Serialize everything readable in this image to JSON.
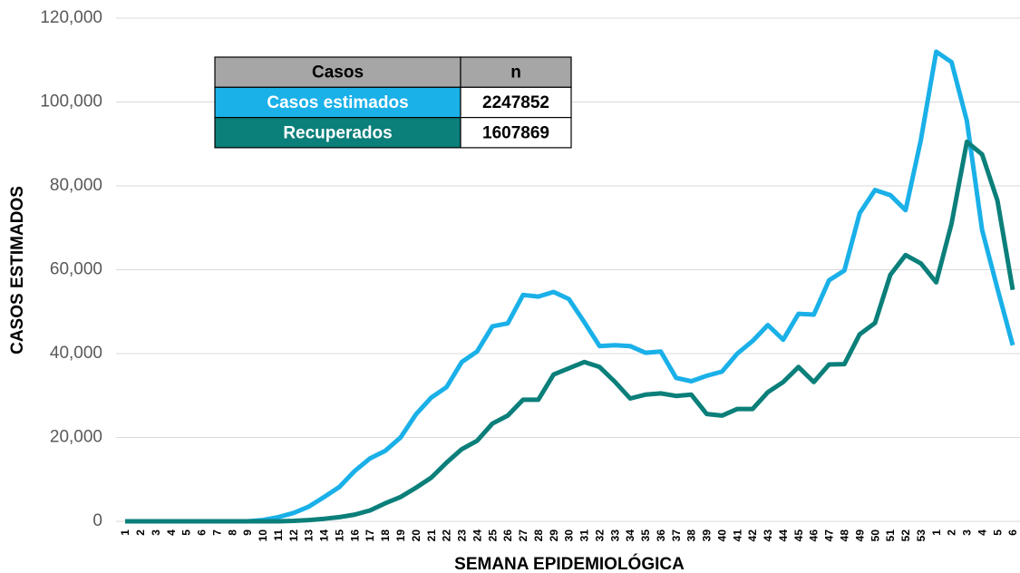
{
  "chart_data": {
    "type": "line",
    "y_label": "CASOS ESTIMADOS",
    "x_label": "SEMANA EPIDEMIOLÓGICA",
    "categories": [
      "1",
      "2",
      "3",
      "4",
      "5",
      "6",
      "7",
      "8",
      "9",
      "10",
      "11",
      "12",
      "13",
      "14",
      "15",
      "16",
      "17",
      "18",
      "19",
      "20",
      "21",
      "22",
      "23",
      "24",
      "25",
      "26",
      "27",
      "28",
      "29",
      "30",
      "31",
      "32",
      "33",
      "34",
      "35",
      "36",
      "37",
      "38",
      "39",
      "40",
      "41",
      "42",
      "43",
      "44",
      "45",
      "46",
      "47",
      "48",
      "49",
      "50",
      "51",
      "52",
      "53",
      "1",
      "2",
      "3",
      "4",
      "5",
      "6"
    ],
    "series": [
      {
        "name": "Casos estimados",
        "color": "#1ab0e8",
        "values": [
          0,
          0,
          0,
          0,
          0,
          0,
          0,
          0,
          0,
          300,
          1000,
          2000,
          3500,
          5800,
          8200,
          12000,
          15000,
          16800,
          20000,
          25500,
          29500,
          32000,
          38000,
          40500,
          46500,
          47200,
          54000,
          53600,
          54700,
          53000,
          47500,
          41800,
          42000,
          41800,
          40200,
          40500,
          34200,
          33400,
          34700,
          35700,
          40000,
          43000,
          46800,
          43300,
          49500,
          49300,
          57500,
          59800,
          73500,
          79000,
          77800,
          74200,
          91000,
          112000,
          109500,
          95500,
          69500,
          55500,
          42000
        ]
      },
      {
        "name": "Recuperados",
        "color": "#0b7f7a",
        "values": [
          0,
          0,
          0,
          0,
          0,
          0,
          0,
          0,
          0,
          0,
          0,
          100,
          300,
          600,
          1000,
          1600,
          2600,
          4300,
          5800,
          8000,
          10400,
          14000,
          17200,
          19200,
          23300,
          25200,
          29000,
          29000,
          35000,
          36500,
          38000,
          36800,
          33300,
          29300,
          30200,
          30500,
          29900,
          30200,
          25600,
          25200,
          26800,
          26800,
          30800,
          33200,
          36800,
          33200,
          37400,
          37500,
          44600,
          47300,
          58800,
          63500,
          61500,
          57000,
          71000,
          90500,
          87500,
          76500,
          55200
        ]
      }
    ],
    "ylim": [
      0,
      120000
    ],
    "yticks": [
      0,
      {
        "value": 20000,
        "label": "20,000"
      },
      {
        "value": 40000,
        "label": "40,000"
      },
      {
        "value": 60000,
        "label": "60,000"
      },
      {
        "value": 80000,
        "label": "80,000"
      },
      {
        "value": 100000,
        "label": "100,000"
      },
      {
        "value": 120000,
        "label": "120,000"
      }
    ],
    "grid": true,
    "table": {
      "header": [
        "Casos",
        "n"
      ],
      "rows": [
        [
          "Casos estimados",
          2247852
        ],
        [
          "Recuperados",
          1607869
        ]
      ]
    }
  }
}
